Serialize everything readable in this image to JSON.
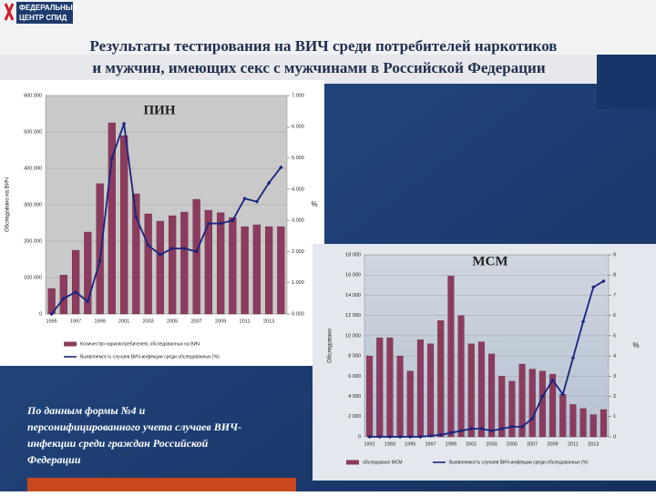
{
  "header": {
    "logo": [
      "ФЕДЕРАЛЬНЫЙ",
      "ЦЕНТР СПИД"
    ],
    "title": [
      "Результаты тестирования на ВИЧ среди потребителей наркотиков",
      "и мужчин, имеющих секс с мужчинами в Российской Федерации"
    ]
  },
  "note": [
    "По данным формы №4 и",
    "персонифицированного учета случаев ВИЧ-",
    "инфекции среди граждан Российской",
    "Федерации"
  ],
  "chart_data": [
    {
      "type": "bar",
      "title": "ПИН",
      "y_label": "Обследовано на ВИЧ",
      "y2_label": "%",
      "categories": [
        "1995",
        null,
        "1997",
        null,
        "1999",
        null,
        "2001",
        null,
        "2003",
        null,
        "2005",
        null,
        "2007",
        null,
        "2009",
        null,
        "2011",
        null,
        "2013",
        null
      ],
      "series": [
        {
          "name": "Количество наркопотребителей, обследованных на ВИЧ",
          "type": "bar",
          "color": "#8c3b5e",
          "values": [
            70000,
            107000,
            175000,
            225000,
            358000,
            525000,
            490000,
            330000,
            275000,
            255000,
            270000,
            280000,
            315000,
            285000,
            278000,
            265000,
            240000,
            245000,
            240000,
            240000
          ]
        },
        {
          "name": "Выявляемость случаев ВИЧ-инфекции среди обследованных (%)",
          "type": "line",
          "axis": "y2",
          "color": "#1a237e",
          "values": [
            0.0,
            0.5,
            0.7,
            0.4,
            1.7,
            5.0,
            6.1,
            3.1,
            2.2,
            1.9,
            2.1,
            2.1,
            2.0,
            2.9,
            2.9,
            3.0,
            3.7,
            3.6,
            4.2,
            4.7
          ]
        }
      ],
      "ylim": [
        0,
        600000
      ],
      "yticks": [
        0,
        {
          "value": 100000,
          "label": "100.000"
        },
        {
          "value": 200000,
          "label": "200.000"
        },
        {
          "value": 300000,
          "label": "300.000"
        },
        {
          "value": 400000,
          "label": "400.000"
        },
        {
          "value": 500000,
          "label": "500.000"
        },
        {
          "value": 600000,
          "label": "600.000"
        }
      ],
      "y2lim": [
        0,
        7
      ],
      "y2ticks": [
        {
          "value": 0,
          "label": "0.000"
        },
        {
          "value": 1,
          "label": "1.000"
        },
        {
          "value": 2,
          "label": "2.000"
        },
        {
          "value": 3,
          "label": "3.000"
        },
        {
          "value": 4,
          "label": "4.000"
        },
        {
          "value": 5,
          "label": "5.000"
        },
        {
          "value": 6,
          "label": "6.000"
        },
        {
          "value": 7,
          "label": "7.000"
        }
      ],
      "grid": true
    },
    {
      "type": "bar",
      "title": "МСМ",
      "y_label": "Обследовано",
      "y2_label": "%",
      "categories": [
        "1991",
        null,
        "1993",
        null,
        "1995",
        null,
        "1997",
        null,
        "1999",
        null,
        "2001",
        null,
        "2003",
        null,
        "2005",
        null,
        "2007",
        null,
        "2009",
        null,
        "2011",
        null,
        "2013",
        null
      ],
      "series": [
        {
          "name": "обследовано МСМ",
          "type": "bar",
          "color": "#8c3b5e",
          "values": [
            8000,
            9800,
            9800,
            8000,
            6500,
            9600,
            9200,
            11500,
            15900,
            12000,
            9200,
            9400,
            8200,
            6000,
            5500,
            7200,
            6700,
            6500,
            6200,
            4200,
            3200,
            2800,
            2200,
            2700
          ]
        },
        {
          "name": "Выявляемость случаев ВИЧ-инфекции среди обследованных (%)",
          "type": "line",
          "axis": "y2",
          "color": "#1a237e",
          "values": [
            0,
            0,
            0,
            0,
            0,
            0,
            0.05,
            0.1,
            0.2,
            0.3,
            0.4,
            0.4,
            0.3,
            0.4,
            0.5,
            0.5,
            0.9,
            2.0,
            2.8,
            2.1,
            3.9,
            5.7,
            7.4,
            7.7
          ]
        }
      ],
      "ylim": [
        0,
        18000
      ],
      "yticks": [
        0,
        {
          "value": 2000,
          "label": "2 000"
        },
        {
          "value": 4000,
          "label": "4 000"
        },
        {
          "value": 6000,
          "label": "6 000"
        },
        {
          "value": 8000,
          "label": "8 000"
        },
        {
          "value": 10000,
          "label": "10 000"
        },
        {
          "value": 12000,
          "label": "12 000"
        },
        {
          "value": 14000,
          "label": "14 000"
        },
        {
          "value": 16000,
          "label": "16 000"
        },
        {
          "value": 18000,
          "label": "18 000"
        }
      ],
      "y2lim": [
        0,
        9
      ],
      "y2ticks": [
        0,
        1,
        2,
        3,
        4,
        5,
        6,
        7,
        8,
        9
      ],
      "grid": true
    }
  ]
}
